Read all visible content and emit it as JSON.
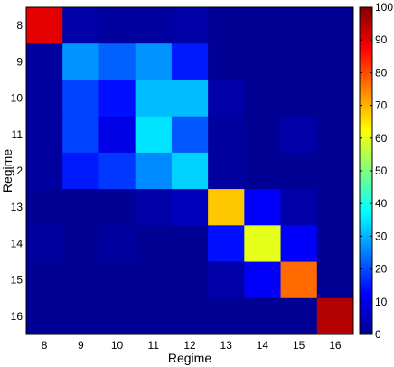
{
  "chart_data": {
    "type": "heatmap",
    "xlabel": "Regime",
    "ylabel": "Regime",
    "x_categories": [
      "8",
      "9",
      "10",
      "11",
      "12",
      "13",
      "14",
      "15",
      "16"
    ],
    "y_categories": [
      "8",
      "9",
      "10",
      "11",
      "12",
      "13",
      "14",
      "15",
      "16"
    ],
    "values": [
      [
        90,
        4,
        3,
        3,
        4,
        2,
        2,
        2,
        2
      ],
      [
        3,
        27,
        22,
        27,
        15,
        2,
        2,
        2,
        2
      ],
      [
        3,
        19,
        14,
        31,
        31,
        4,
        2,
        2,
        2
      ],
      [
        3,
        19,
        10,
        35,
        21,
        3,
        2,
        4,
        2
      ],
      [
        3,
        15,
        18,
        26,
        33,
        3,
        2,
        2,
        2
      ],
      [
        2,
        2,
        2,
        4,
        6,
        68,
        12,
        4,
        2
      ],
      [
        3,
        2,
        3,
        2,
        2,
        14,
        60,
        12,
        2
      ],
      [
        2,
        2,
        2,
        2,
        2,
        4,
        12,
        77,
        2
      ],
      [
        2,
        2,
        2,
        2,
        2,
        2,
        2,
        2,
        95
      ]
    ],
    "colorbar": {
      "min": 0,
      "max": 100,
      "ticks": [
        "0",
        "10",
        "20",
        "30",
        "40",
        "50",
        "60",
        "70",
        "80",
        "90",
        "100"
      ],
      "colormap": "jet"
    },
    "grid": false
  }
}
